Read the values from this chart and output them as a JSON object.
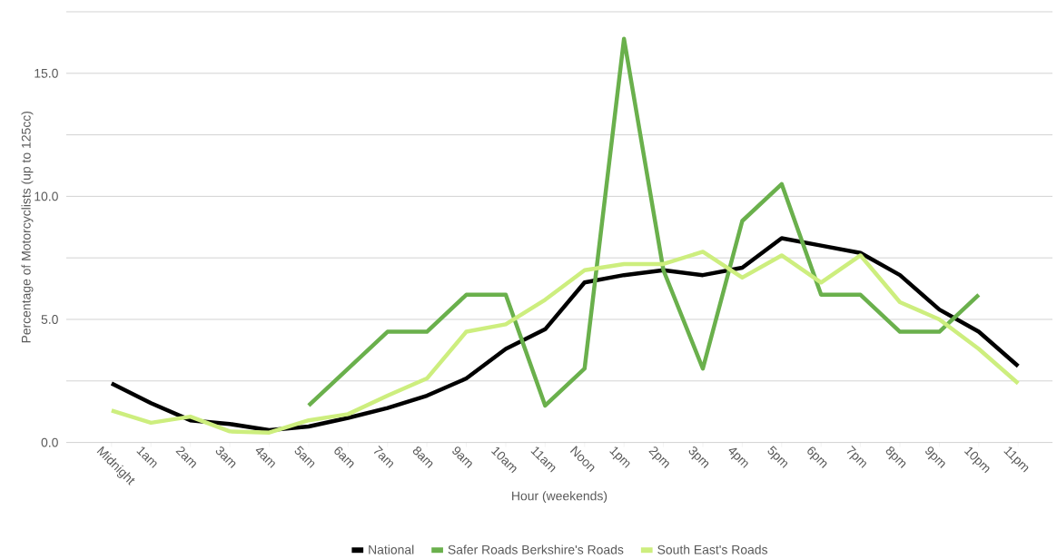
{
  "chart_data": {
    "type": "line",
    "xlabel": "Hour (weekends)",
    "ylabel": "Percentage of Motorcyclists (up to 125cc)",
    "categories": [
      "Midnight",
      "1am",
      "2am",
      "3am",
      "4am",
      "5am",
      "6am",
      "7am",
      "8am",
      "9am",
      "10am",
      "11am",
      "Noon",
      "1pm",
      "2pm",
      "3pm",
      "4pm",
      "5pm",
      "6pm",
      "7pm",
      "8pm",
      "9pm",
      "10pm",
      "11pm"
    ],
    "series": [
      {
        "name": "National",
        "color": "#000000",
        "values": [
          2.4,
          1.6,
          0.9,
          0.75,
          0.5,
          0.65,
          1.0,
          1.4,
          1.9,
          2.6,
          3.8,
          4.6,
          6.5,
          6.8,
          7.0,
          6.8,
          7.1,
          8.3,
          8.0,
          7.7,
          6.8,
          5.4,
          4.5,
          3.1
        ]
      },
      {
        "name": "Safer Roads Berkshire's Roads",
        "color": "#6ab04c",
        "values": [
          null,
          null,
          null,
          null,
          null,
          1.5,
          3.0,
          4.5,
          4.5,
          6.0,
          6.0,
          1.5,
          3.0,
          16.4,
          7.0,
          3.0,
          9.0,
          10.5,
          6.0,
          6.0,
          4.5,
          4.5,
          6.0,
          null
        ]
      },
      {
        "name": "South East's Roads",
        "color": "#cdee7e",
        "values": [
          1.3,
          0.8,
          1.05,
          0.45,
          0.4,
          0.9,
          1.15,
          1.9,
          2.6,
          4.5,
          4.8,
          5.8,
          7.0,
          7.25,
          7.25,
          7.75,
          6.7,
          7.6,
          6.5,
          7.6,
          5.7,
          5.0,
          3.8,
          2.4
        ]
      }
    ],
    "ylim": [
      0,
      17.5
    ],
    "yticks": [
      {
        "value": 0,
        "label": "0.0"
      },
      {
        "value": 2.5,
        "label": null
      },
      {
        "value": 5,
        "label": "5.0"
      },
      {
        "value": 7.5,
        "label": null
      },
      {
        "value": 10,
        "label": "10.0"
      },
      {
        "value": 12.5,
        "label": null
      },
      {
        "value": 15,
        "label": "15.0"
      },
      {
        "value": 17.5,
        "label": null
      }
    ],
    "grid": "y",
    "legend": "bottom",
    "marker": "none",
    "line_style": "solid"
  }
}
